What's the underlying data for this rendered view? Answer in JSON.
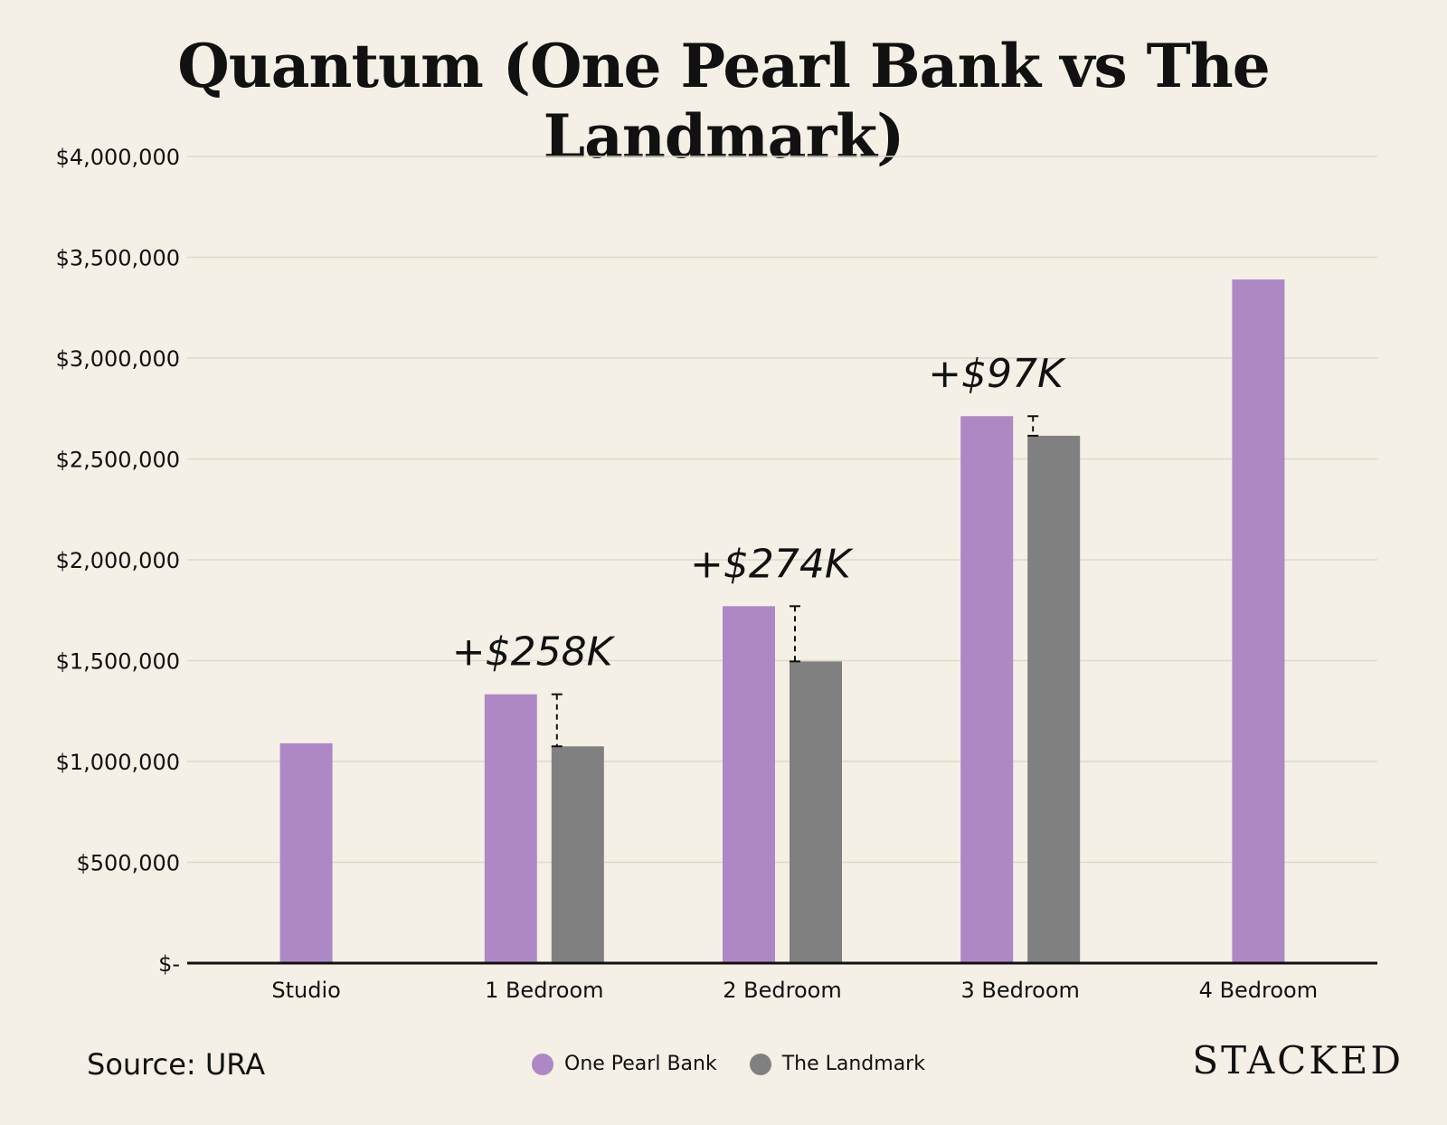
{
  "chart_data": {
    "type": "bar",
    "title": "Quantum (One Pearl Bank vs The Landmark)",
    "categories": [
      "Studio",
      "1 Bedroom",
      "2 Bedroom",
      "3 Bedroom",
      "4 Bedroom"
    ],
    "series": [
      {
        "name": "One Pearl Bank",
        "color": "#ad88c5",
        "values": [
          1090000,
          1333000,
          1770000,
          2712000,
          3390000
        ]
      },
      {
        "name": "The Landmark",
        "color": "#808080",
        "values": [
          null,
          1075000,
          1496000,
          2615000,
          null
        ]
      }
    ],
    "ylim": [
      0,
      4000000
    ],
    "yticks": [
      {
        "value": 0,
        "label": "$-"
      },
      {
        "value": 500000,
        "label": "$500,000"
      },
      {
        "value": 1000000,
        "label": "$1,000,000"
      },
      {
        "value": 1500000,
        "label": "$1,500,000"
      },
      {
        "value": 2000000,
        "label": "$2,000,000"
      },
      {
        "value": 2500000,
        "label": "$2,500,000"
      },
      {
        "value": 3000000,
        "label": "$3,000,000"
      },
      {
        "value": 3500000,
        "label": "$3,500,000"
      },
      {
        "value": 4000000,
        "label": "$4,000,000"
      }
    ],
    "annotations": [
      {
        "category": "1 Bedroom",
        "text": "+$258K"
      },
      {
        "category": "2 Bedroom",
        "text": "+$274K"
      },
      {
        "category": "3 Bedroom",
        "text": "+$97K"
      }
    ],
    "grid": true,
    "legend_position": "bottom-center"
  },
  "footer": {
    "source": "Source: URA",
    "brand": "STACKED"
  }
}
